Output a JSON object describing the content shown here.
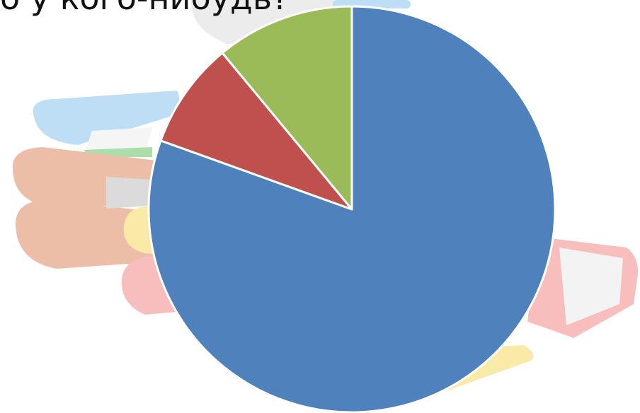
{
  "slide": {
    "title": "о у кого-нибудь?"
  },
  "colors": {
    "background_books": [
      "#a9d4f2",
      "#e7a98a",
      "#f7e48a",
      "#f6a8a8",
      "#d8d8d8"
    ]
  },
  "chart_data": {
    "type": "pie",
    "title": "",
    "start_angle_deg": 0,
    "direction": "clockwise",
    "legend": "none",
    "slices": [
      {
        "value": 80.5,
        "color": "#4f81bd"
      },
      {
        "value": 8.5,
        "color": "#c0504d"
      },
      {
        "value": 11.0,
        "color": "#9bbb59"
      }
    ]
  }
}
